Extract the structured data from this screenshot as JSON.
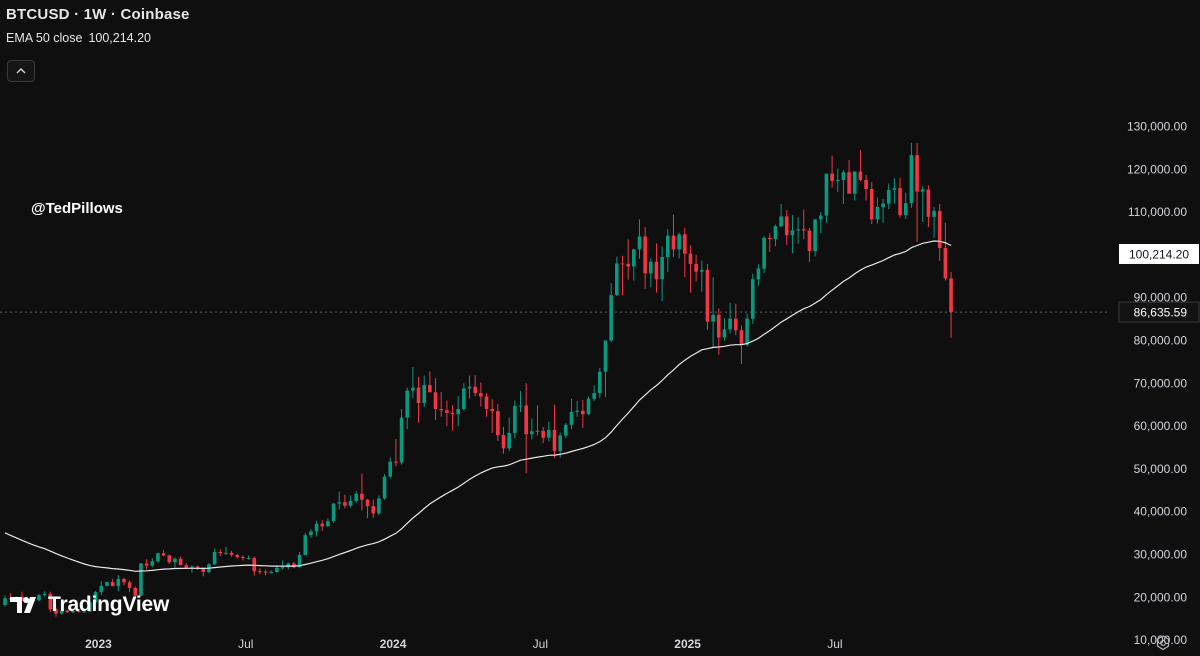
{
  "header": {
    "title": "BTCUSD · 1W · Coinbase",
    "ema_label": "EMA 50 close",
    "ema_value": "100,214.20"
  },
  "watermark": {
    "handle": "@TedPillows",
    "logo_text": "TradingView"
  },
  "icons": {
    "collapse": "chevron-up-icon",
    "logo": "tradingview-logo-icon",
    "settings": "settings-icon"
  },
  "colors": {
    "background": "#0f0f0f",
    "up": "#089981",
    "down": "#f23645",
    "ema": "#e8e8e8",
    "axis_text": "#d1d4dc"
  },
  "chart_data": {
    "type": "candlestick",
    "symbol": "BTCUSD",
    "interval": "1W",
    "exchange": "Coinbase",
    "y_ticks": [
      "130,000.00",
      "120,000.00",
      "110,000.00",
      "90,000.00",
      "80,000.00",
      "70,000.00",
      "60,000.00",
      "50,000.00",
      "40,000.00",
      "30,000.00",
      "20,000.00",
      "10,000.00"
    ],
    "y_tick_values": [
      130000,
      120000,
      110000,
      90000,
      80000,
      70000,
      60000,
      50000,
      40000,
      30000,
      20000,
      10000
    ],
    "x_ticks": [
      "2023",
      "Jul",
      "2024",
      "Jul",
      "2025",
      "Jul"
    ],
    "ylim": [
      5000,
      135000
    ],
    "y_price_label": "100,214.20",
    "y_price_value": 100214.2,
    "last_price_label": "86,635.59",
    "last_price_value": 86635.59,
    "grid": false,
    "candles": [
      [
        18200,
        20400,
        17800,
        19800
      ],
      [
        19800,
        21000,
        19200,
        19500
      ],
      [
        19500,
        20200,
        18900,
        20100
      ],
      [
        20100,
        21300,
        19700,
        19200
      ],
      [
        19200,
        19600,
        18600,
        19100
      ],
      [
        19100,
        19400,
        18700,
        19300
      ],
      [
        19300,
        20800,
        19100,
        20500
      ],
      [
        20500,
        21400,
        20200,
        20800
      ],
      [
        20800,
        21300,
        16500,
        17200
      ],
      [
        17200,
        17600,
        15500,
        16200
      ],
      [
        16200,
        17300,
        15900,
        16900
      ],
      [
        16900,
        17100,
        16300,
        16500
      ],
      [
        16500,
        17000,
        16300,
        16800
      ],
      [
        16800,
        17200,
        16400,
        16600
      ],
      [
        16600,
        17000,
        16400,
        16700
      ],
      [
        16700,
        19000,
        16600,
        18800
      ],
      [
        18800,
        21500,
        18700,
        21200
      ],
      [
        21200,
        23800,
        20500,
        22700
      ],
      [
        22700,
        23400,
        22500,
        23600
      ],
      [
        23600,
        24300,
        22600,
        22600
      ],
      [
        22600,
        25200,
        21400,
        24300
      ],
      [
        24300,
        24500,
        22800,
        23500
      ],
      [
        23500,
        23900,
        21200,
        22200
      ],
      [
        22200,
        22500,
        19600,
        20400
      ],
      [
        20400,
        28000,
        20300,
        27900
      ],
      [
        27900,
        28900,
        26500,
        27400
      ],
      [
        27400,
        29200,
        27000,
        28400
      ],
      [
        28400,
        30400,
        28100,
        30300
      ],
      [
        30300,
        31000,
        29600,
        29800
      ],
      [
        29800,
        30000,
        27800,
        28200
      ],
      [
        28200,
        29300,
        26900,
        29000
      ],
      [
        29000,
        29500,
        27600,
        27500
      ],
      [
        27500,
        28000,
        26600,
        26900
      ],
      [
        26900,
        27500,
        25800,
        27200
      ],
      [
        27200,
        27400,
        26400,
        26800
      ],
      [
        26800,
        27000,
        24900,
        25900
      ],
      [
        25900,
        28000,
        25600,
        27700
      ],
      [
        27700,
        31400,
        27500,
        30600
      ],
      [
        30600,
        31200,
        29700,
        30300
      ],
      [
        30300,
        31800,
        29900,
        30400
      ],
      [
        30400,
        30900,
        29500,
        29900
      ],
      [
        29900,
        30100,
        29100,
        29400
      ],
      [
        29400,
        29800,
        28600,
        29200
      ],
      [
        29200,
        29800,
        28800,
        29200
      ],
      [
        29200,
        29500,
        25100,
        26100
      ],
      [
        26100,
        26800,
        25400,
        26000
      ],
      [
        26000,
        26500,
        25100,
        25800
      ],
      [
        25800,
        26300,
        25500,
        25900
      ],
      [
        25900,
        27500,
        25700,
        26900
      ],
      [
        26900,
        28600,
        26500,
        27000
      ],
      [
        27000,
        28100,
        26500,
        27900
      ],
      [
        27900,
        28300,
        26800,
        27000
      ],
      [
        27000,
        30600,
        26900,
        29900
      ],
      [
        29900,
        35000,
        29800,
        34500
      ],
      [
        34500,
        35900,
        33900,
        35400
      ],
      [
        35400,
        37900,
        34200,
        37200
      ],
      [
        37200,
        38000,
        35500,
        36600
      ],
      [
        36600,
        38400,
        36500,
        37800
      ],
      [
        37800,
        42000,
        37400,
        41900
      ],
      [
        41900,
        44700,
        40500,
        42200
      ],
      [
        42200,
        44000,
        40800,
        41400
      ],
      [
        41400,
        43800,
        41000,
        42500
      ],
      [
        42500,
        44800,
        42100,
        44200
      ],
      [
        44200,
        48900,
        40300,
        42800
      ],
      [
        42800,
        43000,
        38500,
        41300
      ],
      [
        41300,
        42800,
        38600,
        39600
      ],
      [
        39600,
        43800,
        39200,
        43100
      ],
      [
        43100,
        48800,
        42800,
        48200
      ],
      [
        48200,
        52700,
        47800,
        51700
      ],
      [
        51700,
        57000,
        50600,
        51500
      ],
      [
        51500,
        64000,
        51000,
        62000
      ],
      [
        62000,
        69000,
        59300,
        68300
      ],
      [
        68300,
        73800,
        66500,
        69000
      ],
      [
        69000,
        71500,
        60800,
        65400
      ],
      [
        65400,
        71800,
        64500,
        69600
      ],
      [
        69600,
        72800,
        68200,
        67900
      ],
      [
        67900,
        71200,
        61400,
        64000
      ],
      [
        64000,
        68000,
        62200,
        63700
      ],
      [
        63700,
        66000,
        60000,
        63100
      ],
      [
        63100,
        64900,
        59000,
        62800
      ],
      [
        62800,
        67000,
        60000,
        64000
      ],
      [
        64000,
        70000,
        63600,
        68800
      ],
      [
        68800,
        71800,
        66500,
        69200
      ],
      [
        69200,
        71900,
        67000,
        67700
      ],
      [
        67700,
        70200,
        64600,
        66900
      ],
      [
        66900,
        67700,
        62200,
        64000
      ],
      [
        64000,
        66300,
        58400,
        63500
      ],
      [
        63500,
        65200,
        56500,
        57900
      ],
      [
        57900,
        59800,
        53500,
        54800
      ],
      [
        54800,
        62000,
        54200,
        58400
      ],
      [
        58400,
        66000,
        57100,
        64700
      ],
      [
        64700,
        68200,
        63300,
        64800
      ],
      [
        64800,
        70000,
        49000,
        58100
      ],
      [
        58100,
        61800,
        56900,
        58800
      ],
      [
        58800,
        64900,
        57800,
        58900
      ],
      [
        58900,
        59800,
        56000,
        57300
      ],
      [
        57300,
        61000,
        56400,
        59100
      ],
      [
        59100,
        65000,
        52600,
        54200
      ],
      [
        54200,
        58500,
        52600,
        57800
      ],
      [
        57800,
        60700,
        57200,
        60300
      ],
      [
        60300,
        66400,
        59300,
        63300
      ],
      [
        63300,
        65900,
        62200,
        63600
      ],
      [
        63600,
        66100,
        59600,
        62800
      ],
      [
        62800,
        66900,
        62600,
        66400
      ],
      [
        66400,
        69500,
        65900,
        67700
      ],
      [
        67700,
        73600,
        66500,
        72700
      ],
      [
        72700,
        80000,
        66800,
        80000
      ],
      [
        80000,
        93400,
        79600,
        90600
      ],
      [
        90600,
        99600,
        90400,
        98000
      ],
      [
        98000,
        99800,
        90600,
        97900
      ],
      [
        97900,
        103600,
        94200,
        97300
      ],
      [
        97300,
        101400,
        94000,
        101300
      ],
      [
        101300,
        108300,
        99100,
        104300
      ],
      [
        104300,
        106500,
        92000,
        95700
      ],
      [
        95700,
        99200,
        92500,
        98400
      ],
      [
        98400,
        102700,
        91200,
        94300
      ],
      [
        94300,
        102000,
        89200,
        99500
      ],
      [
        99500,
        106000,
        96000,
        104500
      ],
      [
        104500,
        109400,
        99500,
        101300
      ],
      [
        101300,
        105200,
        99200,
        104800
      ],
      [
        104800,
        106300,
        94800,
        100300
      ],
      [
        100300,
        102200,
        91200,
        97900
      ],
      [
        97900,
        100000,
        93800,
        96100
      ],
      [
        96100,
        98700,
        91400,
        96500
      ],
      [
        96500,
        97900,
        82500,
        84400
      ],
      [
        84400,
        94800,
        78300,
        86000
      ],
      [
        86000,
        87500,
        76700,
        80700
      ],
      [
        80700,
        85200,
        80000,
        82600
      ],
      [
        82600,
        88800,
        81600,
        85100
      ],
      [
        85100,
        88600,
        81200,
        82400
      ],
      [
        82400,
        83500,
        74500,
        79000
      ],
      [
        79000,
        86300,
        78600,
        85100
      ],
      [
        85100,
        95600,
        83900,
        94300
      ],
      [
        94300,
        97800,
        92800,
        96800
      ],
      [
        96800,
        104400,
        95800,
        104000
      ],
      [
        104000,
        105000,
        100700,
        103700
      ],
      [
        103700,
        107100,
        102000,
        106700
      ],
      [
        106700,
        111900,
        106400,
        109000
      ],
      [
        109000,
        110500,
        102300,
        104600
      ],
      [
        104600,
        109300,
        100400,
        105700
      ],
      [
        105700,
        108800,
        102600,
        106000
      ],
      [
        106000,
        110600,
        103700,
        105700
      ],
      [
        105700,
        106300,
        98300,
        100900
      ],
      [
        100900,
        108400,
        99600,
        108300
      ],
      [
        108300,
        110000,
        105100,
        109200
      ],
      [
        109200,
        118800,
        107500,
        119000
      ],
      [
        119000,
        123200,
        115700,
        117300
      ],
      [
        117300,
        120200,
        114700,
        117500
      ],
      [
        117500,
        119800,
        111900,
        119300
      ],
      [
        119300,
        122200,
        115000,
        114300
      ],
      [
        114300,
        119300,
        112700,
        119500
      ],
      [
        119500,
        124500,
        117200,
        117500
      ],
      [
        117500,
        118700,
        112700,
        115400
      ],
      [
        115400,
        117000,
        107200,
        108300
      ],
      [
        108300,
        113400,
        107300,
        111200
      ],
      [
        111200,
        113100,
        107500,
        112000
      ],
      [
        112000,
        116700,
        110700,
        115200
      ],
      [
        115200,
        117900,
        112000,
        115600
      ],
      [
        115600,
        118000,
        108700,
        109300
      ],
      [
        109300,
        114500,
        108400,
        112100
      ],
      [
        112100,
        126200,
        111000,
        123300
      ],
      [
        123300,
        126100,
        103000,
        114800
      ],
      [
        114800,
        116000,
        107700,
        115300
      ],
      [
        115300,
        116300,
        106500,
        108900
      ],
      [
        108900,
        111200,
        104000,
        110300
      ],
      [
        110300,
        111900,
        98600,
        101600
      ],
      [
        101600,
        107500,
        94000,
        94500
      ],
      [
        94500,
        96000,
        80600,
        86635
      ]
    ]
  }
}
